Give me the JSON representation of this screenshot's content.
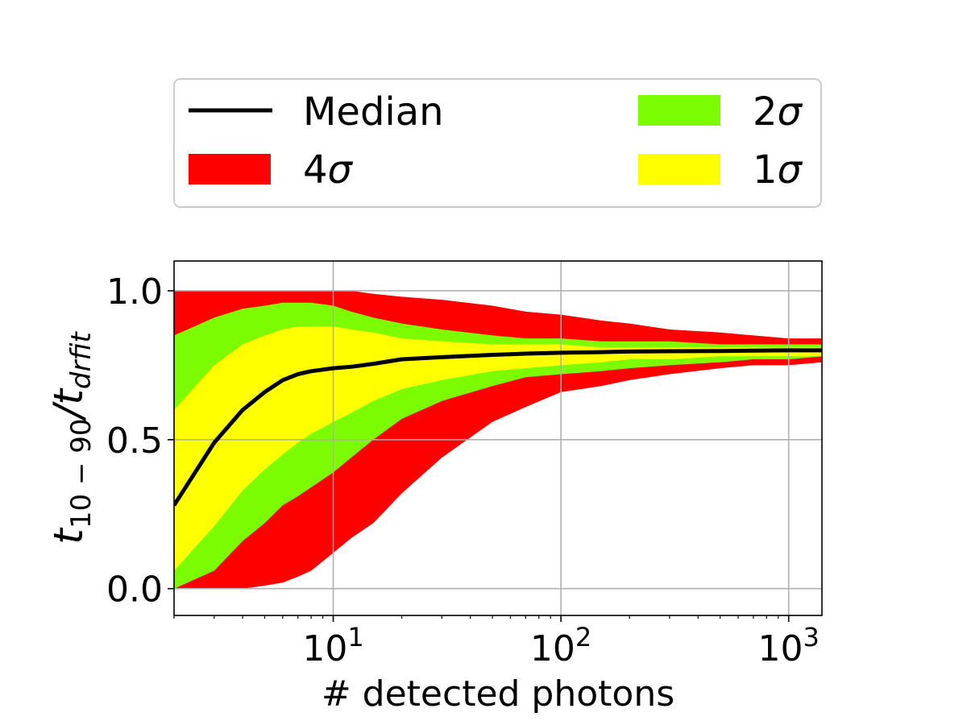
{
  "chart_data": {
    "type": "area",
    "xlabel": "# detected photons",
    "ylabel_main": "t",
    "ylabel_sub1": "10 − 90",
    "ylabel_slash": "/t",
    "ylabel_sub2": "drfit",
    "xscale": "log",
    "xlim": [
      2,
      1400
    ],
    "ylim": [
      -0.09,
      1.1
    ],
    "x_ticks": [
      {
        "base": "10",
        "exp": "1",
        "value": 10
      },
      {
        "base": "10",
        "exp": "2",
        "value": 100
      },
      {
        "base": "10",
        "exp": "3",
        "value": 1000
      }
    ],
    "y_ticks": [
      {
        "label": "0.0",
        "value": 0.0
      },
      {
        "label": "0.5",
        "value": 0.5
      },
      {
        "label": "1.0",
        "value": 1.0
      }
    ],
    "grid": true,
    "legend": {
      "placement": "above plot",
      "entries": [
        {
          "label_main": "Median",
          "label_sym": "",
          "kind": "line",
          "color": "#000000"
        },
        {
          "label_main": "2",
          "label_sym": "σ",
          "kind": "patch",
          "color": "#7cfc00"
        },
        {
          "label_main": "4",
          "label_sym": "σ",
          "kind": "patch",
          "color": "#ff0000"
        },
        {
          "label_main": "1",
          "label_sym": "σ",
          "kind": "patch",
          "color": "#ffff00"
        }
      ]
    },
    "x": [
      2,
      3,
      4,
      5,
      6,
      7,
      8,
      10,
      12,
      15,
      20,
      30,
      50,
      70,
      100,
      150,
      200,
      300,
      500,
      700,
      1000,
      1400
    ],
    "bands": [
      {
        "name": "4σ",
        "color": "#ff0000",
        "lower": [
          0.0,
          0.0,
          0.0,
          0.01,
          0.02,
          0.04,
          0.06,
          0.12,
          0.17,
          0.22,
          0.32,
          0.44,
          0.56,
          0.61,
          0.66,
          0.68,
          0.7,
          0.72,
          0.74,
          0.75,
          0.75,
          0.76
        ],
        "upper": [
          1.0,
          1.0,
          1.0,
          1.0,
          1.0,
          1.0,
          1.0,
          1.0,
          1.0,
          0.99,
          0.98,
          0.97,
          0.95,
          0.93,
          0.92,
          0.9,
          0.89,
          0.87,
          0.86,
          0.85,
          0.84,
          0.84
        ]
      },
      {
        "name": "2σ",
        "color": "#7cfc00",
        "lower": [
          0.0,
          0.06,
          0.16,
          0.22,
          0.28,
          0.31,
          0.34,
          0.39,
          0.44,
          0.5,
          0.57,
          0.63,
          0.68,
          0.71,
          0.72,
          0.73,
          0.74,
          0.75,
          0.76,
          0.77,
          0.77,
          0.78
        ],
        "upper": [
          0.85,
          0.91,
          0.94,
          0.95,
          0.96,
          0.96,
          0.96,
          0.95,
          0.93,
          0.91,
          0.89,
          0.87,
          0.85,
          0.84,
          0.84,
          0.83,
          0.83,
          0.83,
          0.82,
          0.82,
          0.82,
          0.82
        ]
      },
      {
        "name": "1σ",
        "color": "#ffff00",
        "lower": [
          0.06,
          0.21,
          0.33,
          0.4,
          0.45,
          0.49,
          0.52,
          0.56,
          0.59,
          0.63,
          0.67,
          0.7,
          0.73,
          0.74,
          0.75,
          0.76,
          0.77,
          0.77,
          0.78,
          0.78,
          0.78,
          0.78
        ],
        "upper": [
          0.6,
          0.75,
          0.82,
          0.85,
          0.87,
          0.88,
          0.88,
          0.88,
          0.87,
          0.86,
          0.84,
          0.83,
          0.82,
          0.82,
          0.82,
          0.81,
          0.81,
          0.81,
          0.81,
          0.81,
          0.81,
          0.81
        ]
      }
    ],
    "series": [
      {
        "name": "Median",
        "color": "#000000",
        "values": [
          0.28,
          0.49,
          0.6,
          0.66,
          0.7,
          0.72,
          0.73,
          0.74,
          0.745,
          0.755,
          0.77,
          0.777,
          0.785,
          0.789,
          0.792,
          0.794,
          0.796,
          0.797,
          0.798,
          0.799,
          0.8,
          0.8
        ]
      }
    ]
  }
}
